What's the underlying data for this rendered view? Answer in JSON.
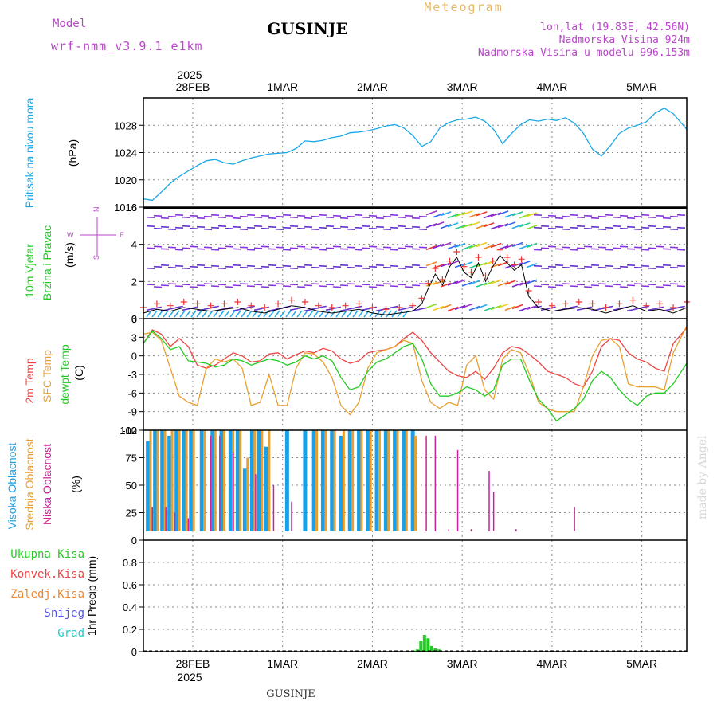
{
  "header": {
    "meteogram_label": "Meteogram",
    "model_label": "Model",
    "model_name": "wrf-nmm_v3.9.1 e1km",
    "station": "GUSINJE",
    "lonlat": "lon,lat (19.83E, 42.56N)",
    "elevation": "Nadmorska Visina 924m",
    "model_elevation": "Nadmorska Visina u modelu 996.153m",
    "footer_station": "GUSINJE",
    "credit": "made by Angel"
  },
  "time_axis": {
    "year": "2025",
    "ticks": [
      "28FEB",
      "1MAR",
      "2MAR",
      "3MAR",
      "4MAR",
      "5MAR"
    ],
    "start_offset_days": -0.55,
    "end_offset_days": 5.5
  },
  "colors": {
    "pressure": "#1aa7e8",
    "wind_speed_black": "#000000",
    "wind_red_marks": "#ee3333",
    "temp2m": "#ee4444",
    "sfc_temp": "#e8a030",
    "dewpt": "#22cc22",
    "cloud_high": "#1aa0e8",
    "cloud_mid": "#e8a030",
    "cloud_low": "#cc2299",
    "precip_total": "#22cc22",
    "label_magenta": "#bb44cc",
    "label_orange": "#e8b860"
  },
  "chart_data": [
    {
      "type": "line",
      "panel": "pressure",
      "ylabel_main": "Pritisak na nivou mora",
      "ylabel_unit": "(hPa)",
      "ylim": [
        1016,
        1032
      ],
      "yticks": [
        1016,
        1020,
        1024,
        1028
      ],
      "grid": true,
      "series": [
        {
          "x": [
            -0.55,
            -0.45,
            -0.35,
            -0.25,
            -0.15,
            -0.05,
            0.05,
            0.15,
            0.25,
            0.35,
            0.45,
            0.55,
            0.65,
            0.75,
            0.85,
            0.95,
            1.05,
            1.15,
            1.25,
            1.35,
            1.45,
            1.55,
            1.65,
            1.75,
            1.85,
            1.95,
            2.05,
            2.15,
            2.25,
            2.35,
            2.45,
            2.55,
            2.65,
            2.75,
            2.85,
            2.95,
            3.05,
            3.15,
            3.25,
            3.35,
            3.45,
            3.55,
            3.65,
            3.75,
            3.85,
            3.95,
            4.05,
            4.15,
            4.25,
            4.35,
            4.45,
            4.55,
            4.65,
            4.75,
            4.85,
            4.95,
            5.05,
            5.15,
            5.25,
            5.35,
            5.5
          ],
          "values": [
            1017.2,
            1017.0,
            1018.2,
            1019.5,
            1020.5,
            1021.3,
            1022.1,
            1022.8,
            1023.0,
            1022.5,
            1022.3,
            1022.8,
            1023.2,
            1023.5,
            1023.8,
            1023.9,
            1024.0,
            1024.6,
            1025.7,
            1025.6,
            1025.8,
            1026.2,
            1026.4,
            1026.9,
            1027.0,
            1027.2,
            1027.5,
            1027.9,
            1028.1,
            1027.6,
            1026.5,
            1024.9,
            1025.6,
            1027.6,
            1028.4,
            1028.8,
            1028.9,
            1029.2,
            1028.6,
            1027.4,
            1025.3,
            1026.8,
            1028.1,
            1028.8,
            1028.6,
            1028.9,
            1028.7,
            1029.1,
            1028.3,
            1026.8,
            1024.5,
            1023.5,
            1025.0,
            1026.8,
            1027.6,
            1028.0,
            1028.5,
            1029.8,
            1030.5,
            1029.7,
            1027.4
          ]
        }
      ]
    },
    {
      "type": "line",
      "panel": "wind",
      "ylabel_main": "10m Vjetar",
      "ylabel_sub": "Brzina i Pravac",
      "ylabel_unit": "(m/s)",
      "compass": {
        "n": "N",
        "s": "S",
        "e": "E",
        "w": "W"
      },
      "ylim": [
        0,
        6
      ],
      "yticks": [
        0,
        2,
        4,
        6
      ],
      "grid": true,
      "series": [
        {
          "x": [
            -0.55,
            -0.4,
            -0.25,
            -0.1,
            0.05,
            0.2,
            0.35,
            0.5,
            0.65,
            0.8,
            0.95,
            1.1,
            1.25,
            1.4,
            1.55,
            1.7,
            1.85,
            2.0,
            2.15,
            2.3,
            2.45,
            2.55,
            2.62,
            2.7,
            2.78,
            2.86,
            2.94,
            3.02,
            3.1,
            3.18,
            3.26,
            3.34,
            3.42,
            3.5,
            3.58,
            3.66,
            3.74,
            3.85,
            4.0,
            4.15,
            4.3,
            4.45,
            4.6,
            4.75,
            4.9,
            5.05,
            5.2,
            5.35,
            5.5
          ],
          "values": [
            0.3,
            0.5,
            0.4,
            0.6,
            0.5,
            0.4,
            0.5,
            0.6,
            0.4,
            0.3,
            0.5,
            0.7,
            0.6,
            0.4,
            0.3,
            0.4,
            0.5,
            0.3,
            0.2,
            0.3,
            0.4,
            0.8,
            1.6,
            2.4,
            1.8,
            2.8,
            3.3,
            2.5,
            2.2,
            3.0,
            2.0,
            2.8,
            3.4,
            3.0,
            2.6,
            2.9,
            1.2,
            0.6,
            0.4,
            0.5,
            0.6,
            0.5,
            0.3,
            0.5,
            0.7,
            0.4,
            0.5,
            0.3,
            0.6
          ]
        }
      ]
    },
    {
      "type": "line",
      "panel": "temperature",
      "ylabel_a": "2m Temp",
      "ylabel_b": "SFC Temp",
      "ylabel_c": "dewpt Temp",
      "ylabel_unit": "(C)",
      "ylim": [
        -12,
        6
      ],
      "yticks": [
        -12,
        -9,
        -6,
        -3,
        0,
        3,
        6
      ],
      "grid": true,
      "x": [
        -0.55,
        -0.45,
        -0.35,
        -0.25,
        -0.15,
        -0.05,
        0.05,
        0.15,
        0.25,
        0.35,
        0.45,
        0.55,
        0.65,
        0.75,
        0.85,
        0.95,
        1.05,
        1.15,
        1.25,
        1.35,
        1.45,
        1.55,
        1.65,
        1.75,
        1.85,
        1.95,
        2.05,
        2.15,
        2.25,
        2.35,
        2.45,
        2.55,
        2.65,
        2.75,
        2.85,
        2.95,
        3.05,
        3.15,
        3.25,
        3.35,
        3.45,
        3.55,
        3.65,
        3.75,
        3.85,
        3.95,
        4.05,
        4.15,
        4.25,
        4.35,
        4.45,
        4.55,
        4.65,
        4.75,
        4.85,
        4.95,
        5.05,
        5.15,
        5.25,
        5.35,
        5.5
      ],
      "series": [
        {
          "name": "2m Temp",
          "values": [
            2.0,
            4.2,
            3.5,
            1.5,
            2.8,
            1.5,
            -1.5,
            -2.0,
            -1.5,
            -0.5,
            0.5,
            0.0,
            -1.0,
            -0.8,
            0.3,
            0.5,
            -0.5,
            0.2,
            0.8,
            0.5,
            1.2,
            0.8,
            -0.5,
            -1.2,
            -0.8,
            0.5,
            0.8,
            1.0,
            1.5,
            2.8,
            3.8,
            2.5,
            0.5,
            -1.0,
            -2.5,
            -3.2,
            -3.5,
            -2.5,
            -3.8,
            -2.0,
            0.5,
            1.5,
            1.2,
            0.2,
            -1.0,
            -2.5,
            -3.0,
            -3.5,
            -4.5,
            -5.0,
            -2.5,
            1.5,
            2.8,
            2.5,
            0.5,
            -0.5,
            -1.0,
            -2.0,
            -2.5,
            2.0,
            4.5
          ]
        },
        {
          "name": "SFC Temp",
          "values": [
            3.5,
            3.8,
            2.5,
            -2.0,
            -6.5,
            -7.5,
            -8.0,
            -2.0,
            -0.5,
            -1.0,
            -0.5,
            -2.0,
            -8.0,
            -7.5,
            -3.0,
            -8.0,
            -8.0,
            -2.0,
            0.5,
            0.3,
            -1.0,
            -3.5,
            -8.0,
            -9.5,
            -7.5,
            -2.0,
            0.5,
            1.0,
            1.5,
            2.5,
            2.0,
            -4.0,
            -7.5,
            -8.5,
            -7.5,
            -8.0,
            -1.5,
            0.0,
            -5.5,
            -7.0,
            -0.5,
            1.0,
            0.5,
            -3.0,
            -7.5,
            -8.5,
            -9.0,
            -9.0,
            -9.0,
            -5.0,
            0.0,
            2.5,
            2.8,
            1.5,
            -4.5,
            -5.0,
            -5.0,
            -5.0,
            -5.5,
            0.5,
            4.8
          ]
        },
        {
          "name": "dewpt Temp",
          "values": [
            2.0,
            4.0,
            2.8,
            1.0,
            1.5,
            -0.8,
            -1.0,
            -1.2,
            -1.8,
            -1.5,
            -0.5,
            -0.8,
            -1.5,
            -1.0,
            -0.5,
            -0.8,
            -1.5,
            -1.0,
            0.0,
            -0.5,
            0.0,
            -0.8,
            -3.5,
            -5.5,
            -5.0,
            -2.5,
            -1.0,
            -0.5,
            0.5,
            1.5,
            2.0,
            -0.5,
            -4.5,
            -6.5,
            -6.5,
            -6.0,
            -5.0,
            -5.5,
            -6.5,
            -5.5,
            -1.5,
            -0.5,
            -0.5,
            -4.0,
            -7.0,
            -8.5,
            -10.5,
            -9.5,
            -8.5,
            -7.0,
            -4.0,
            -2.5,
            -3.5,
            -5.5,
            -7.0,
            -8.0,
            -6.5,
            -6.0,
            -6.0,
            -4.5,
            -1.2
          ]
        }
      ]
    },
    {
      "type": "bar",
      "panel": "clouds",
      "ylabel_a": "Visoka Oblacnost",
      "ylabel_b": "Srednja Oblacnost",
      "ylabel_c": "Niska Oblacnost",
      "ylabel_unit": "(%)",
      "ylim": [
        0,
        100
      ],
      "yticks": [
        0,
        25,
        50,
        75,
        100
      ],
      "grid": true,
      "series": [
        {
          "name": "Visoka Oblacnost",
          "x": [
            -0.5,
            -0.42,
            -0.34,
            -0.26,
            -0.18,
            -0.1,
            -0.02,
            0.1,
            0.22,
            0.32,
            0.42,
            0.5,
            0.58,
            0.66,
            0.74,
            0.82,
            0.92,
            1.05,
            1.15,
            1.25,
            1.35,
            1.45,
            1.55,
            1.65,
            1.75,
            1.85,
            1.95,
            2.05,
            2.15,
            2.25,
            2.35,
            2.45
          ],
          "values": [
            90,
            100,
            100,
            95,
            100,
            100,
            100,
            100,
            100,
            100,
            100,
            100,
            65,
            100,
            100,
            85,
            0,
            100,
            0,
            100,
            100,
            100,
            100,
            95,
            100,
            100,
            100,
            100,
            100,
            100,
            100,
            100
          ]
        },
        {
          "name": "Srednja Oblacnost",
          "x": [
            -0.47,
            -0.39,
            -0.31,
            -0.23,
            -0.15,
            -0.07,
            0.01,
            0.13,
            0.25,
            0.35,
            0.45,
            0.53,
            0.61,
            0.69,
            0.77,
            0.85,
            1.38,
            1.48,
            1.58,
            1.68,
            1.78,
            1.88,
            1.98,
            2.08,
            2.18,
            2.28,
            2.38,
            2.48
          ],
          "values": [
            100,
            100,
            100,
            100,
            100,
            100,
            100,
            100,
            100,
            100,
            100,
            100,
            75,
            100,
            100,
            100,
            100,
            100,
            100,
            100,
            100,
            100,
            100,
            100,
            100,
            100,
            100,
            95
          ]
        },
        {
          "name": "Niska Oblacnost",
          "x": [
            -0.45,
            -0.3,
            -0.2,
            -0.05,
            0.2,
            0.3,
            0.45,
            0.7,
            0.9,
            1.1,
            2.6,
            2.7,
            2.85,
            2.95,
            3.1,
            3.15,
            3.3,
            3.35,
            3.6,
            4.25
          ],
          "values": [
            30,
            30,
            25,
            20,
            95,
            95,
            80,
            60,
            50,
            35,
            95,
            95,
            10,
            82,
            10,
            5,
            63,
            44,
            10,
            30
          ]
        }
      ]
    },
    {
      "type": "bar",
      "panel": "precip",
      "ylabel_main": "1hr Precip (mm)",
      "legend": [
        "Ukupna Kisa",
        "Konvek.Kisa",
        "Zaledj.Kisa",
        "Snijeg",
        "Grad"
      ],
      "ylim": [
        0,
        1
      ],
      "yticks": [
        0,
        0.2,
        0.4,
        0.6,
        0.8
      ],
      "grid": true,
      "series": [
        {
          "name": "Ukupna Kisa",
          "x": [
            2.42,
            2.46,
            2.5,
            2.54,
            2.58,
            2.62,
            2.66,
            2.7,
            2.74
          ],
          "values": [
            0.005,
            0.01,
            0.02,
            0.1,
            0.15,
            0.12,
            0.05,
            0.03,
            0.02
          ]
        }
      ]
    }
  ]
}
